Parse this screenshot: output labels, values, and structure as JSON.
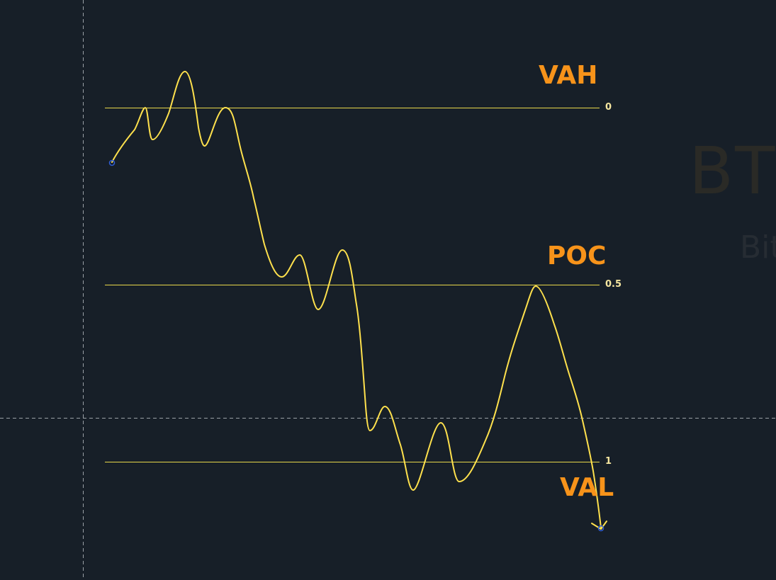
{
  "chart": {
    "watermark_symbol": "BTC",
    "watermark_name": "Bit",
    "zone_labels": {
      "vah": "VAH",
      "poc": "POC",
      "val": "VAL"
    },
    "levels": [
      {
        "tick_label": "0",
        "ratio": 0
      },
      {
        "tick_label": "0.5",
        "ratio": 0.5
      },
      {
        "tick_label": "1",
        "ratio": 1
      }
    ]
  },
  "colors": {
    "background": "#171f28",
    "price_line": "#ffe14d",
    "level_line": "#e8d84a",
    "zone_label": "#f7931a",
    "tick_label": "#f6e6a0",
    "anchor_point": "#2f5ed8",
    "crosshair": "#c8cdd2"
  }
}
